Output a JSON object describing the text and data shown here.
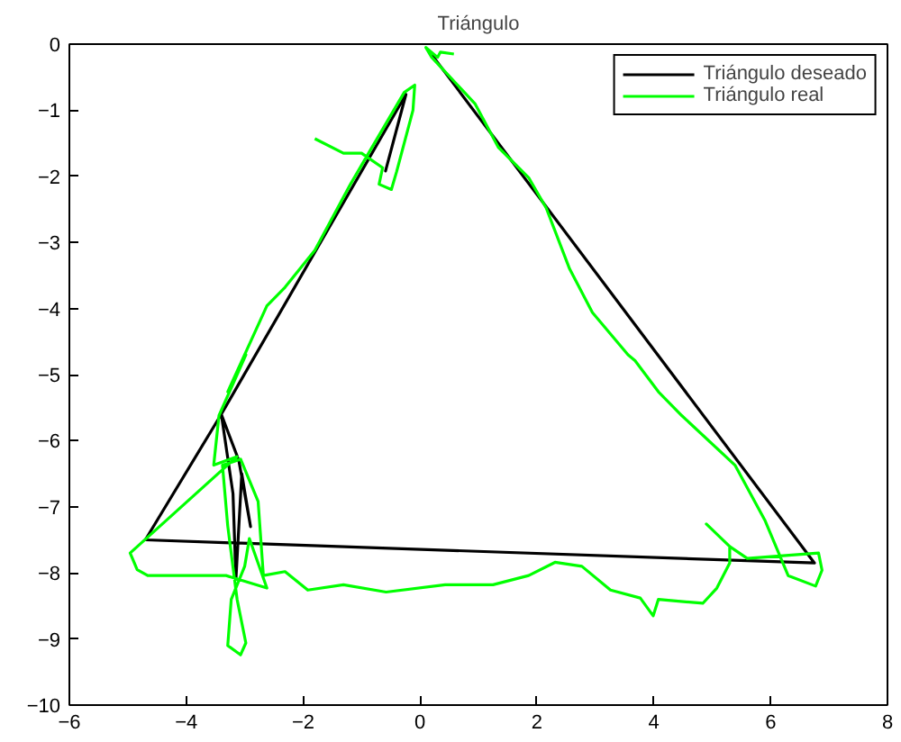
{
  "chart_data": {
    "type": "line",
    "title": "Triángulo",
    "xlim": [
      -6,
      8
    ],
    "ylim": [
      -10,
      0
    ],
    "xticks": [
      -6,
      -4,
      -2,
      0,
      2,
      4,
      6,
      8
    ],
    "yticks": [
      -10,
      -9,
      -8,
      -7,
      -6,
      -5,
      -4,
      -3,
      -2,
      -1,
      0
    ],
    "grid": false,
    "legend": "top right",
    "marker": "none",
    "line_style": "solid",
    "series": [
      {
        "name": "Triángulo deseado",
        "color": "#000000",
        "x": [
          0.15,
          6.75,
          -4.7,
          -3.4,
          -3.2,
          -3.15,
          -3.05,
          -2.9,
          -3.1,
          -3.4,
          -0.24,
          -0.59,
          -0.24
        ],
        "values": [
          -0.1,
          -7.85,
          -7.5,
          -5.6,
          -6.8,
          -8.1,
          -6.5,
          -7.3,
          -6.3,
          -5.6,
          -0.76,
          -1.92,
          -0.76
        ]
      },
      {
        "name": "Triángulo real",
        "color": "#00ff00",
        "x": [
          0.58,
          0.35,
          0.3,
          0.1,
          0.2,
          0.94,
          1.34,
          1.86,
          2.16,
          2.56,
          2.95,
          3.56,
          3.68,
          4.08,
          4.48,
          5.39,
          5.9,
          6.3,
          6.77,
          6.88,
          6.82,
          5.6,
          5.3,
          4.9,
          5.3,
          5.3,
          5.08,
          4.84,
          4.08,
          3.99,
          3.77,
          3.26,
          2.77,
          2.31,
          1.86,
          1.25,
          0.73,
          0.43,
          -0.58,
          -1.31,
          -1.92,
          -2.31,
          -2.68,
          -2.77,
          -3.07,
          -3.38,
          -3.29,
          -3.13,
          -2.98,
          -3.07,
          -3.29,
          -3.23,
          -3.0,
          -2.92,
          -2.62,
          -3.32,
          -4.66,
          -4.84,
          -4.96,
          -3.13,
          -3.53,
          -3.44,
          -2.98,
          -3.29,
          -2.62,
          -2.31,
          -1.8,
          -1.19,
          -0.88,
          -0.27,
          -0.09,
          -0.12,
          -0.4,
          -0.49,
          -0.7,
          -0.64,
          -1.0,
          -1.31,
          -1.8
        ],
        "values": [
          -0.15,
          -0.12,
          -0.2,
          -0.05,
          -0.2,
          -0.9,
          -1.56,
          -2.02,
          -2.48,
          -3.4,
          -4.06,
          -4.7,
          -4.79,
          -5.26,
          -5.62,
          -6.37,
          -7.2,
          -8.04,
          -8.2,
          -7.96,
          -7.7,
          -7.78,
          -7.6,
          -7.26,
          -7.6,
          -7.85,
          -8.23,
          -8.46,
          -8.4,
          -8.65,
          -8.38,
          -8.26,
          -7.9,
          -7.84,
          -8.04,
          -8.18,
          -8.18,
          -8.18,
          -8.29,
          -8.18,
          -8.26,
          -7.98,
          -8.04,
          -6.92,
          -6.28,
          -6.37,
          -7.29,
          -8.4,
          -9.06,
          -9.24,
          -9.1,
          -8.4,
          -7.9,
          -7.48,
          -8.23,
          -8.04,
          -8.04,
          -7.95,
          -7.7,
          -6.24,
          -6.37,
          -5.62,
          -4.7,
          -5.26,
          -3.96,
          -3.68,
          -3.12,
          -2.12,
          -1.65,
          -0.73,
          -0.62,
          -1.0,
          -1.93,
          -2.2,
          -2.12,
          -1.87,
          -1.65,
          -1.65,
          -1.43
        ]
      }
    ]
  }
}
